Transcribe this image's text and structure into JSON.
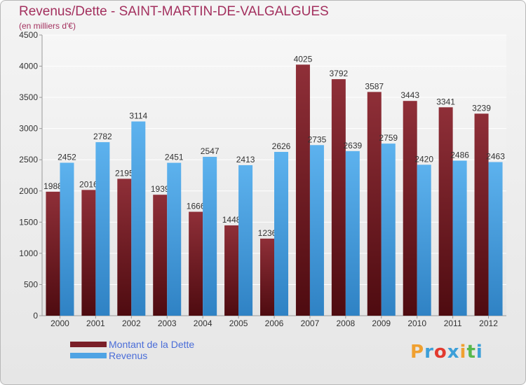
{
  "title": "Revenus/Dette - SAINT-MARTIN-DE-VALGALGUES",
  "subtitle": "(en milliers d'€)",
  "colors": {
    "dette": "#7a1f28",
    "revenus": "#4ea3e4",
    "title": "#a3305e",
    "legend_text": "#4a6dd8"
  },
  "legend": {
    "dette_label": "Montant de la Dette",
    "revenus_label": "Revenus"
  },
  "logo": {
    "text": "Proxiti",
    "letters": [
      {
        "ch": "P",
        "color": "#f0a030"
      },
      {
        "ch": "r",
        "color": "#3c9fd8"
      },
      {
        "ch": "o",
        "color": "#e23a2f"
      },
      {
        "ch": "x",
        "color": "#3c9fd8"
      },
      {
        "ch": "i",
        "color": "#f0a030"
      },
      {
        "ch": "t",
        "color": "#57b84c"
      },
      {
        "ch": "i",
        "color": "#3c9fd8"
      }
    ]
  },
  "chart_data": {
    "type": "bar",
    "categories": [
      "2000",
      "2001",
      "2002",
      "2003",
      "2004",
      "2005",
      "2006",
      "2007",
      "2008",
      "2009",
      "2010",
      "2011",
      "2012"
    ],
    "series": [
      {
        "name": "Montant de la Dette",
        "values": [
          1988,
          2016,
          2195,
          1939,
          1666,
          1448,
          1236,
          4025,
          3792,
          3587,
          3443,
          3341,
          3239
        ]
      },
      {
        "name": "Revenus",
        "values": [
          2452,
          2782,
          3114,
          2451,
          2547,
          2413,
          2626,
          2735,
          2639,
          2759,
          2420,
          2486,
          2463
        ]
      }
    ],
    "ylim": [
      0,
      4500
    ],
    "yticks": [
      0,
      500,
      1000,
      1500,
      2000,
      2500,
      3000,
      3500,
      4000,
      4500
    ],
    "grid": true,
    "legend_position": "bottom-left"
  }
}
